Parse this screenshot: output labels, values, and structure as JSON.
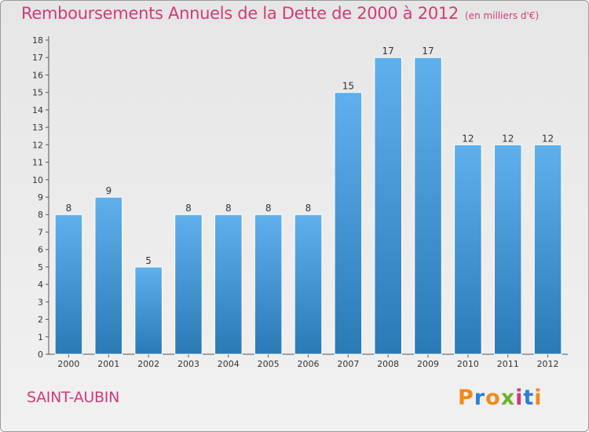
{
  "title": "Remboursements Annuels de la Dette de 2000 à 2012",
  "unit_note": "(en milliers d'€)",
  "commune": "SAINT-AUBIN",
  "logo": {
    "text": "Proxiti",
    "colors": [
      "#f08a1a",
      "#2a7fd4",
      "#f08a1a",
      "#6fb02b",
      "#d23a78",
      "#2a7fd4",
      "#f08a1a"
    ]
  },
  "colors": {
    "bar_top": "#5fb0ec",
    "bar_bottom": "#2a7ab6",
    "title": "#d23a78"
  },
  "chart_data": {
    "type": "bar",
    "title": "Remboursements Annuels de la Dette de 2000 à 2012",
    "subtitle": "(en milliers d'€)",
    "categories": [
      "2000",
      "2001",
      "2002",
      "2003",
      "2004",
      "2005",
      "2006",
      "2007",
      "2008",
      "2009",
      "2010",
      "2011",
      "2012"
    ],
    "values": [
      8,
      9,
      5,
      8,
      8,
      8,
      8,
      15,
      17,
      17,
      12,
      12,
      12
    ],
    "ylim": [
      0,
      18
    ],
    "yticks": [
      0,
      1,
      2,
      3,
      4,
      5,
      6,
      7,
      8,
      9,
      10,
      11,
      12,
      13,
      14,
      15,
      16,
      17,
      18
    ],
    "grid": false,
    "xlabel": "",
    "ylabel": ""
  }
}
